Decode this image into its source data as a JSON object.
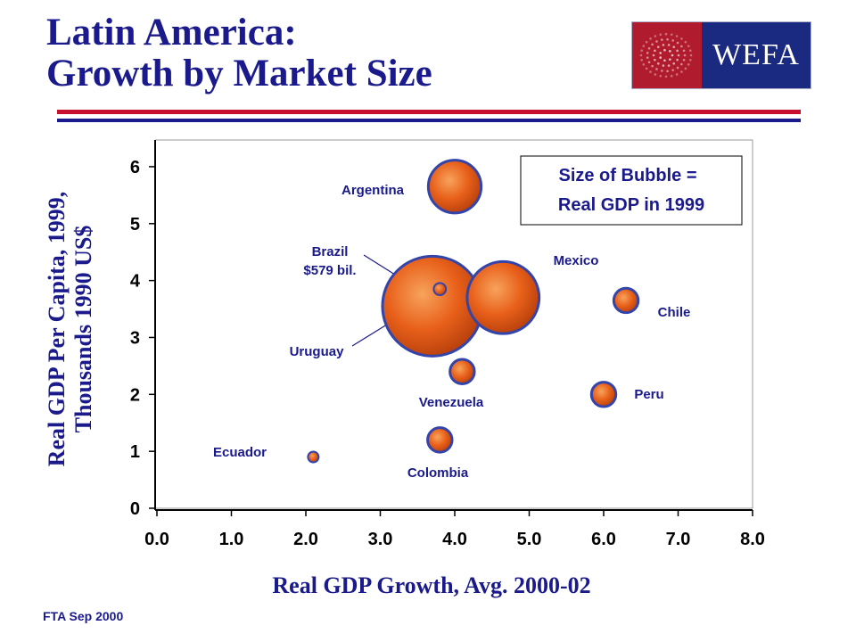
{
  "title": {
    "line1": "Latin America:",
    "line2": "Growth by Market Size"
  },
  "logo": {
    "text": "WEFA",
    "colors": {
      "left": "#b01c2e",
      "right": "#1a2a80"
    }
  },
  "footer": "FTA Sep 2000",
  "chart_data": {
    "type": "scatter",
    "variant": "bubble",
    "xlabel": "Real GDP Growth, Avg. 2000-02",
    "ylabel": [
      "Real GDP Per Capita, 1999,",
      "Thousands 1990 US$"
    ],
    "xlim": [
      0,
      8
    ],
    "ylim": [
      0,
      6.5
    ],
    "x_ticks": [
      "0.0",
      "1.0",
      "2.0",
      "3.0",
      "4.0",
      "5.0",
      "6.0",
      "7.0",
      "8.0"
    ],
    "y_ticks": [
      "0",
      "1",
      "2",
      "3",
      "4",
      "5",
      "6"
    ],
    "grid": false,
    "annotation": {
      "line1": "Size of Bubble =",
      "line2": "Real GDP in 1999"
    },
    "colors": {
      "bubble": "#e8601a",
      "bubble_edge": "#3344aa",
      "text": "#1a1a8c"
    },
    "points": [
      {
        "label": "Argentina",
        "x": 4.0,
        "y": 5.65,
        "size": 0.28
      },
      {
        "label": "Brazil",
        "sublabel": "$579 bil.",
        "x": 3.7,
        "y": 3.55,
        "size": 1.0
      },
      {
        "label": "Mexico",
        "x": 4.65,
        "y": 3.7,
        "size": 0.52
      },
      {
        "label": "Chile",
        "x": 6.3,
        "y": 3.65,
        "size": 0.06
      },
      {
        "label": "Uruguay",
        "x": 3.8,
        "y": 3.85,
        "size": 0.015
      },
      {
        "label": "Venezuela",
        "x": 4.1,
        "y": 2.4,
        "size": 0.06
      },
      {
        "label": "Peru",
        "x": 6.0,
        "y": 2.0,
        "size": 0.06
      },
      {
        "label": "Colombia",
        "x": 3.8,
        "y": 1.2,
        "size": 0.06
      },
      {
        "label": "Ecuador",
        "x": 2.1,
        "y": 0.9,
        "size": 0.01
      }
    ]
  }
}
